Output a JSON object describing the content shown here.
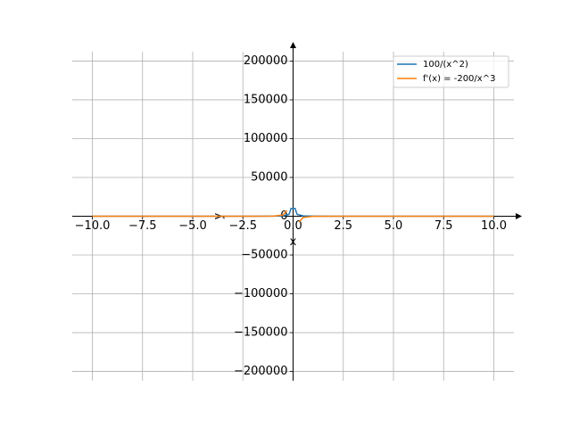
{
  "chart_data": {
    "type": "line",
    "x_label": "x",
    "y_label": "y",
    "xlim": [
      -11,
      11
    ],
    "ylim": [
      -212000,
      212000
    ],
    "xticks": [
      {
        "value": -10,
        "label": "−10.0"
      },
      {
        "value": -7.5,
        "label": "−7.5"
      },
      {
        "value": -5,
        "label": "−5.0"
      },
      {
        "value": -2.5,
        "label": "−2.5"
      },
      {
        "value": 0,
        "label": "0.0"
      },
      {
        "value": 2.5,
        "label": "2.5"
      },
      {
        "value": 5,
        "label": "5.0"
      },
      {
        "value": 7.5,
        "label": "7.5"
      },
      {
        "value": 10,
        "label": "10.0"
      }
    ],
    "yticks": [
      {
        "value": -200000,
        "label": "−200000"
      },
      {
        "value": -150000,
        "label": "−150000"
      },
      {
        "value": -100000,
        "label": "−100000"
      },
      {
        "value": -50000,
        "label": "−50000"
      },
      0,
      50000,
      100000,
      150000,
      200000
    ],
    "grid": true,
    "legend": "upper right",
    "series": [
      {
        "name": "100/(x^2)",
        "color": "#1f77b4",
        "x": [
          -10,
          -5,
          -2,
          -1,
          -0.5,
          -0.2,
          -0.1,
          0.1,
          0.2,
          0.5,
          1,
          2,
          5,
          10
        ],
        "values": [
          1,
          4,
          25,
          100,
          400,
          2500,
          10000,
          10000,
          2500,
          400,
          100,
          25,
          4,
          1
        ]
      },
      {
        "name": "f'(x) = -200/x^3",
        "color": "#ff7f0e",
        "x": [
          -10,
          -5,
          -2,
          -1,
          -0.5,
          -0.3,
          0,
          0.3,
          0.5,
          1,
          2,
          5,
          10
        ],
        "values": [
          0.2,
          1.6,
          25,
          200,
          1600,
          7407.4,
          null,
          -7407.4,
          -1600,
          -200,
          -25,
          -1.6,
          -0.2
        ]
      }
    ]
  }
}
